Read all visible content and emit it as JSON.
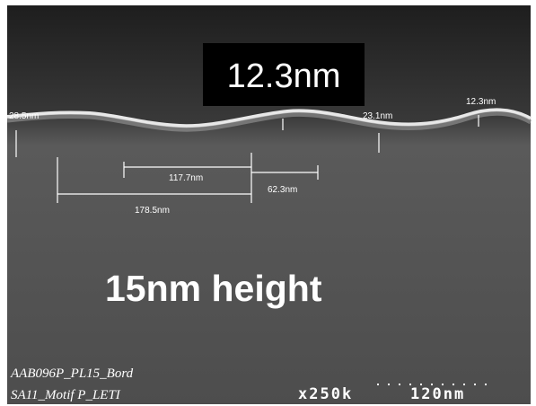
{
  "title_box": "12.3nm",
  "caption": "15nm height",
  "measurements": [
    "28.5nm",
    "117.7nm",
    "62.3nm",
    "178.5nm",
    "23.1nm",
    "12.3nm"
  ],
  "footer": {
    "line1": "AAB096P_PL15_Bord",
    "line2": "SA11_Motif P_LETI",
    "magnification": "x250k",
    "scale": "120nm"
  }
}
